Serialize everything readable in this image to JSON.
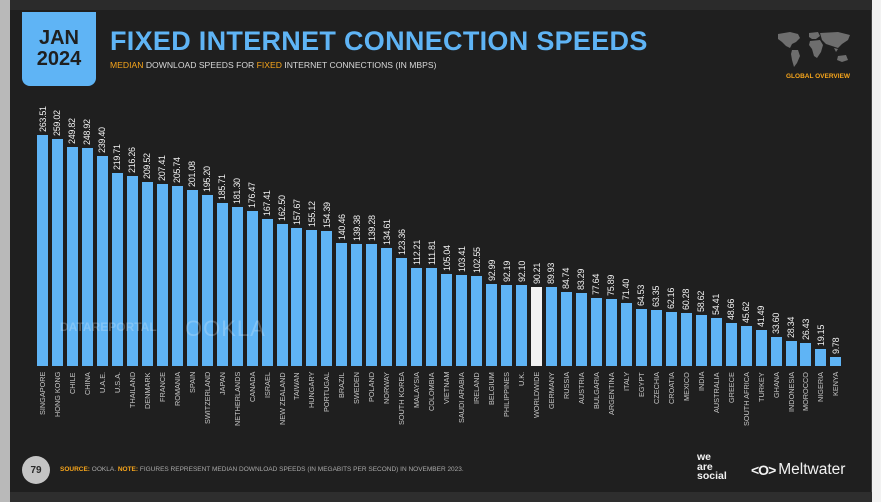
{
  "header": {
    "date_month": "JAN",
    "date_year": "2024",
    "title": "FIXED INTERNET CONNECTION SPEEDS",
    "subtitle_parts": [
      "MEDIAN",
      " DOWNLOAD SPEEDS FOR ",
      "FIXED",
      " INTERNET CONNECTIONS (IN MBPS)"
    ],
    "map_label": "GLOBAL OVERVIEW"
  },
  "watermarks": {
    "datareportal": "DATAREPORTAL",
    "ookla": "OOKLA"
  },
  "footer": {
    "page_number": "79",
    "source_label": "SOURCE:",
    "source_text": " OOKLA. ",
    "note_label": "NOTE:",
    "note_text": " FIGURES REPRESENT MEDIAN DOWNLOAD SPEEDS (IN MEGABITS PER SECOND) IN NOVEMBER 2023.",
    "brand_1": [
      "we",
      "are",
      "social"
    ],
    "brand_2_logo": "<O>",
    "brand_2": "Meltwater"
  },
  "colors": {
    "accent_blue": "#5fb4f5",
    "accent_orange": "#f7a51b",
    "highlight_bar": "#f2f2f2",
    "background": "#1f1f1f"
  },
  "chart_data": {
    "type": "bar",
    "title": "FIXED INTERNET CONNECTION SPEEDS",
    "subtitle": "MEDIAN DOWNLOAD SPEEDS FOR FIXED INTERNET CONNECTIONS (IN MBPS)",
    "xlabel": "",
    "ylabel": "Median download speed (Mbps)",
    "ylim": [
      0,
      270
    ],
    "grid": false,
    "legend": null,
    "highlight": "WORLDWIDE",
    "categories": [
      "SINGAPORE",
      "HONG KONG",
      "CHILE",
      "CHINA",
      "U.A.E.",
      "U.S.A.",
      "THAILAND",
      "DENMARK",
      "FRANCE",
      "ROMANIA",
      "SPAIN",
      "SWITZERLAND",
      "JAPAN",
      "NETHERLANDS",
      "CANADA",
      "ISRAEL",
      "NEW ZEALAND",
      "TAIWAN",
      "HUNGARY",
      "PORTUGAL",
      "BRAZIL",
      "SWEDEN",
      "POLAND",
      "NORWAY",
      "SOUTH KOREA",
      "MALAYSIA",
      "COLOMBIA",
      "VIETNAM",
      "SAUDI ARABIA",
      "IRELAND",
      "BELGIUM",
      "PHILIPPINES",
      "U.K.",
      "WORLDWIDE",
      "GERMANY",
      "RUSSIA",
      "AUSTRIA",
      "BULGARIA",
      "ARGENTINA",
      "ITALY",
      "EGYPT",
      "CZECHIA",
      "CROATIA",
      "MEXICO",
      "INDIA",
      "AUSTRALIA",
      "GREECE",
      "SOUTH AFRICA",
      "TURKEY",
      "GHANA",
      "INDONESIA",
      "MOROCCO",
      "NIGERIA",
      "KENYA"
    ],
    "values": [
      263.51,
      259.02,
      249.82,
      248.92,
      239.4,
      219.71,
      216.26,
      209.52,
      207.41,
      205.74,
      201.08,
      195.2,
      185.71,
      181.3,
      176.47,
      167.41,
      162.5,
      157.67,
      155.12,
      154.39,
      140.46,
      139.38,
      139.28,
      134.61,
      123.36,
      112.21,
      111.81,
      105.04,
      103.41,
      102.55,
      92.99,
      92.19,
      92.1,
      90.21,
      89.93,
      84.74,
      83.29,
      77.64,
      75.89,
      71.4,
      64.53,
      63.35,
      62.16,
      60.28,
      58.62,
      54.41,
      48.66,
      45.62,
      41.49,
      33.6,
      28.34,
      26.43,
      19.15,
      9.78
    ],
    "labels": [
      "263.51",
      "259.02",
      "249.82",
      "248.92",
      "239.40",
      "219.71",
      "216.26",
      "209.52",
      "207.41",
      "205.74",
      "201.08",
      "195.20",
      "185.71",
      "181.30",
      "176.47",
      "167.41",
      "162.50",
      "157.67",
      "155.12",
      "154.39",
      "140.46",
      "139.38",
      "139.28",
      "134.61",
      "123.36",
      "112.21",
      "111.81",
      "105.04",
      "103.41",
      "102.55",
      "92.99",
      "92.19",
      "92.10",
      "90.21",
      "89.93",
      "84.74",
      "83.29",
      "77.64",
      "75.89",
      "71.40",
      "64.53",
      "63.35",
      "62.16",
      "60.28",
      "58.62",
      "54.41",
      "48.66",
      "45.62",
      "41.49",
      "33.60",
      "28.34",
      "26.43",
      "19.15",
      "9.78"
    ]
  }
}
